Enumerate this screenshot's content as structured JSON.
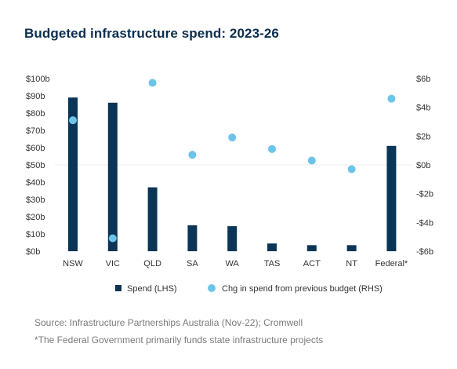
{
  "title": "Budgeted infrastructure spend: 2023-26",
  "source": "Source: Infrastructure Partnerships Australia (Nov-22); Cromwell",
  "note": "*The Federal Government primarily funds state infrastructure projects",
  "colors": {
    "bar": "#0b3556",
    "dot": "#6cc4e8",
    "title": "#0b2e4f"
  },
  "chart_data": {
    "type": "bar",
    "title": "Budgeted infrastructure spend: 2023-26",
    "categories": [
      "NSW",
      "VIC",
      "QLD",
      "SA",
      "WA",
      "TAS",
      "ACT",
      "NT",
      "Federal*"
    ],
    "series": [
      {
        "name": "Spend (LHS)",
        "type": "bar",
        "axis": "left",
        "values": [
          89,
          86,
          37,
          15,
          14.5,
          4.5,
          3.5,
          3.5,
          61
        ]
      },
      {
        "name": "Chg in spend from previous budget (RHS)",
        "type": "scatter",
        "axis": "right",
        "values": [
          3.1,
          -5.1,
          5.7,
          0.7,
          1.9,
          1.1,
          0.3,
          -0.3,
          4.6
        ]
      }
    ],
    "left_axis": {
      "min": 0,
      "max": 100,
      "ticks": [
        "$100b",
        "$90b",
        "$80b",
        "$70b",
        "$60b",
        "$50b",
        "$40b",
        "$30b",
        "$20b",
        "$10b",
        "$0b"
      ]
    },
    "right_axis": {
      "min": -6,
      "max": 6,
      "ticks": [
        "$6b",
        "$4b",
        "$2b",
        "$0b",
        "-$2b",
        "-$4b",
        "-$6b"
      ]
    },
    "legend": {
      "position": "bottom"
    },
    "grid": false
  }
}
